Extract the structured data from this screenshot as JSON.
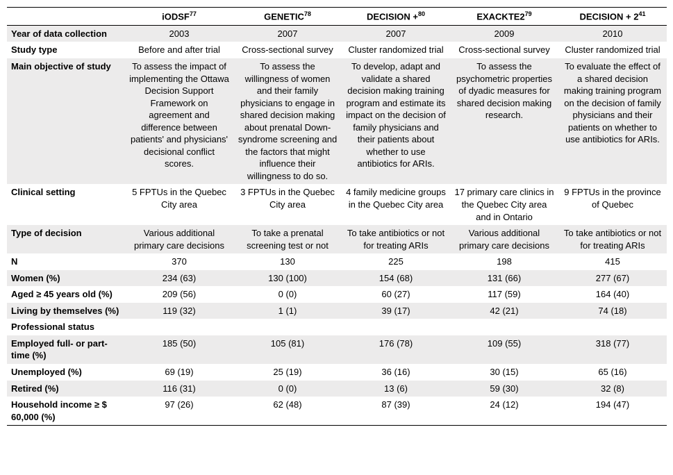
{
  "columns": [
    {
      "title": "iODSF",
      "sup": "77"
    },
    {
      "title": "GENETIC",
      "sup": "78"
    },
    {
      "title": "DECISION +",
      "sup": "80"
    },
    {
      "title": "EXACKTE2",
      "sup": "79"
    },
    {
      "title": "DECISION + 2",
      "sup": "41"
    }
  ],
  "rows": [
    {
      "label": "Year of data collection",
      "shaded": true,
      "cells": [
        "2003",
        "2007",
        "2007",
        "2009",
        "2010"
      ]
    },
    {
      "label": "Study type",
      "shaded": false,
      "cells": [
        "Before and after trial",
        "Cross-sectional survey",
        "Cluster randomized trial",
        "Cross-sectional survey",
        "Cluster randomized trial"
      ]
    },
    {
      "label": "Main objective of study",
      "shaded": true,
      "cells": [
        "To assess the impact of implementing the Ottawa Decision Support Framework on agreement and difference between patients' and physicians' decisional conflict scores.",
        "To assess the willingness of women and their family physicians to engage in shared decision making about prenatal Down-syndrome screening and the factors that might influence their willingness to do so.",
        "To develop, adapt and validate a shared decision making training program and estimate its impact on the decision of family physicians and their patients about whether to use antibiotics for ARIs.",
        "To assess the psychometric properties of dyadic measures for shared decision making research.",
        "To evaluate the effect of a shared decision making training program on the decision of family physicians and their patients on whether to use antibiotics for ARIs."
      ]
    },
    {
      "label": "Clinical setting",
      "shaded": false,
      "cells": [
        "5 FPTUs in the Quebec City area",
        "3 FPTUs in the Quebec City area",
        "4 family medicine groups in the Quebec City area",
        "17 primary care clinics in the Quebec City area and in Ontario",
        "9 FPTUs in the province of Quebec"
      ]
    },
    {
      "label": "Type of decision",
      "shaded": true,
      "cells": [
        "Various additional primary care decisions",
        "To take a prenatal screening test or not",
        "To take antibiotics or not for treating ARIs",
        "Various additional primary care decisions",
        "To take antibiotics or not for treating ARIs"
      ]
    },
    {
      "label": "N",
      "shaded": false,
      "cells": [
        "370",
        "130",
        "225",
        "198",
        "415"
      ]
    },
    {
      "label": "Women (%)",
      "shaded": true,
      "cells": [
        "234 (63)",
        "130 (100)",
        "154 (68)",
        "131 (66)",
        "277 (67)"
      ]
    },
    {
      "label": "Aged ≥ 45 years old (%)",
      "shaded": false,
      "cells": [
        "209 (56)",
        "0 (0)",
        "60 (27)",
        "117 (59)",
        "164 (40)"
      ]
    },
    {
      "label": "Living by themselves (%)",
      "shaded": true,
      "cells": [
        "119 (32)",
        "1 (1)",
        "39 (17)",
        "42 (21)",
        "74 (18)"
      ]
    },
    {
      "label": "Professional status",
      "shaded": false,
      "cells": [
        "",
        "",
        "",
        "",
        ""
      ]
    },
    {
      "label": "Employed full- or part-time (%)",
      "shaded": true,
      "cells": [
        "185 (50)",
        "105 (81)",
        "176 (78)",
        "109 (55)",
        "318 (77)"
      ]
    },
    {
      "label": "Unemployed (%)",
      "shaded": false,
      "cells": [
        "69 (19)",
        "25 (19)",
        "36 (16)",
        "30 (15)",
        "65 (16)"
      ]
    },
    {
      "label": "Retired (%)",
      "shaded": true,
      "cells": [
        "116 (31)",
        "0 (0)",
        "13 (6)",
        "59 (30)",
        "32 (8)"
      ]
    },
    {
      "label": "Household income ≥ $ 60,000 (%)",
      "shaded": false,
      "cells": [
        "97 (26)",
        "62 (48)",
        "87 (39)",
        "24 (12)",
        "194 (47)"
      ]
    }
  ]
}
